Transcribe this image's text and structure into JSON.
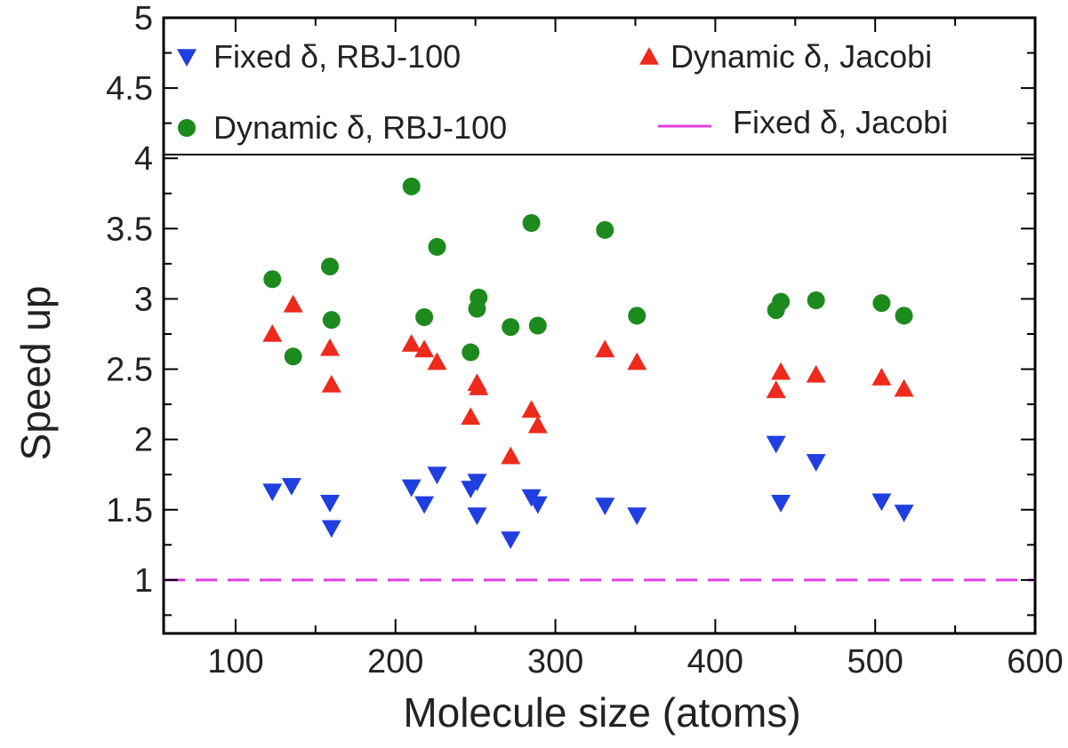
{
  "chart_data": {
    "type": "scatter",
    "xlabel": "Molecule size (atoms)",
    "ylabel": "Speed up",
    "xlim": [
      55,
      600
    ],
    "ylim": [
      0.62,
      5.0
    ],
    "x_ticks": [
      100,
      200,
      300,
      400,
      500,
      600
    ],
    "x_tick_labels": [
      "100",
      "200",
      "300",
      "400",
      "500",
      "600"
    ],
    "y_ticks": [
      1,
      1.5,
      2,
      2.5,
      3,
      3.5,
      4,
      4.5,
      5
    ],
    "y_tick_labels": [
      "1",
      "1.5",
      "2",
      "2.5",
      "3",
      "3.5",
      "4",
      "4.5",
      "5"
    ],
    "grid": false,
    "legend_placement": "top (inside plot frame)",
    "series": [
      {
        "name": "Fixed δ, RBJ-100",
        "marker": "triangle-down",
        "color": "#1f3fe0",
        "points": [
          [
            123,
            1.63
          ],
          [
            135,
            1.67
          ],
          [
            159,
            1.55
          ],
          [
            160,
            1.37
          ],
          [
            210,
            1.66
          ],
          [
            218,
            1.54
          ],
          [
            226,
            1.75
          ],
          [
            247,
            1.65
          ],
          [
            251,
            1.7
          ],
          [
            251,
            1.46
          ],
          [
            272,
            1.29
          ],
          [
            285,
            1.59
          ],
          [
            289,
            1.54
          ],
          [
            331,
            1.53
          ],
          [
            351,
            1.46
          ],
          [
            438,
            1.97
          ],
          [
            441,
            1.55
          ],
          [
            463,
            1.84
          ],
          [
            504,
            1.56
          ],
          [
            518,
            1.48
          ]
        ]
      },
      {
        "name": "Dynamic δ, Jacobi",
        "marker": "triangle-up",
        "color": "#ee2a1c",
        "points": [
          [
            123,
            2.75
          ],
          [
            136,
            2.96
          ],
          [
            159,
            2.65
          ],
          [
            160,
            2.39
          ],
          [
            210,
            2.68
          ],
          [
            218,
            2.64
          ],
          [
            226,
            2.55
          ],
          [
            247,
            2.16
          ],
          [
            251,
            2.4
          ],
          [
            252,
            2.37
          ],
          [
            272,
            1.88
          ],
          [
            285,
            2.21
          ],
          [
            289,
            2.1
          ],
          [
            331,
            2.64
          ],
          [
            351,
            2.55
          ],
          [
            438,
            2.35
          ],
          [
            441,
            2.48
          ],
          [
            463,
            2.46
          ],
          [
            504,
            2.44
          ],
          [
            518,
            2.36
          ]
        ]
      },
      {
        "name": "Dynamic δ, RBJ-100",
        "marker": "circle",
        "color": "#1d8a1d",
        "points": [
          [
            123,
            3.14
          ],
          [
            136,
            2.59
          ],
          [
            159,
            3.23
          ],
          [
            160,
            2.85
          ],
          [
            210,
            3.8
          ],
          [
            218,
            2.87
          ],
          [
            226,
            3.37
          ],
          [
            247,
            2.62
          ],
          [
            251,
            2.93
          ],
          [
            252,
            3.01
          ],
          [
            272,
            2.8
          ],
          [
            285,
            3.54
          ],
          [
            289,
            2.81
          ],
          [
            331,
            3.49
          ],
          [
            351,
            2.88
          ],
          [
            438,
            2.92
          ],
          [
            441,
            2.98
          ],
          [
            463,
            2.99
          ],
          [
            504,
            2.97
          ],
          [
            518,
            2.88
          ]
        ]
      },
      {
        "name": "Fixed δ, Jacobi",
        "marker": "dashed-line",
        "color": "#e040e0",
        "value": 1.0
      }
    ]
  }
}
